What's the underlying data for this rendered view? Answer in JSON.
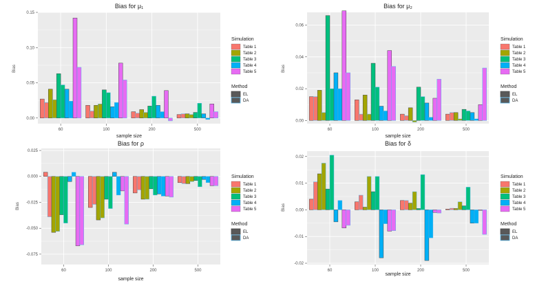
{
  "chart_data": [
    {
      "type": "bar",
      "title": "Bias for  μ₁",
      "xlabel": "sample size",
      "ylabel": "Bias",
      "categories": [
        "60",
        "100",
        "200",
        "500"
      ],
      "ylim": [
        -0.008,
        0.15
      ],
      "yticks": [
        0.0,
        0.05,
        0.1,
        0.15
      ],
      "ytick_labels": [
        "0.00",
        "0.05",
        "0.10",
        "0.15"
      ],
      "series": [
        {
          "table": "Table 1",
          "method": "EL",
          "values": [
            0.027,
            0.018,
            0.009,
            0.005
          ]
        },
        {
          "table": "Table 1",
          "method": "DA",
          "values": [
            0.022,
            0.01,
            0.007,
            0.006
          ]
        },
        {
          "table": "Table 2",
          "method": "EL",
          "values": [
            0.041,
            0.018,
            0.012,
            0.006
          ]
        },
        {
          "table": "Table 2",
          "method": "DA",
          "values": [
            0.026,
            0.02,
            0.008,
            0.005
          ]
        },
        {
          "table": "Table 3",
          "method": "EL",
          "values": [
            0.063,
            0.04,
            0.017,
            0.008
          ]
        },
        {
          "table": "Table 3",
          "method": "DA",
          "values": [
            0.047,
            0.036,
            0.031,
            0.021
          ]
        },
        {
          "table": "Table 4",
          "method": "EL",
          "values": [
            0.041,
            0.016,
            0.018,
            0.006
          ]
        },
        {
          "table": "Table 4",
          "method": "DA",
          "values": [
            0.024,
            0.022,
            0.009,
            -0.002
          ]
        },
        {
          "table": "Table 5",
          "method": "EL",
          "values": [
            0.142,
            0.078,
            0.039,
            0.02
          ]
        },
        {
          "table": "Table 5",
          "method": "DA",
          "values": [
            0.072,
            0.054,
            -0.004,
            0.009
          ]
        }
      ]
    },
    {
      "type": "bar",
      "title": "Bias for  μ₂",
      "xlabel": "sample size",
      "ylabel": "Bias",
      "categories": [
        "60",
        "100",
        "200",
        "500"
      ],
      "ylim": [
        -0.002,
        0.068
      ],
      "yticks": [
        0.0,
        0.02,
        0.04,
        0.06
      ],
      "ytick_labels": [
        "0.00",
        "0.02",
        "0.04",
        "0.06"
      ],
      "series": [
        {
          "table": "Table 1",
          "method": "EL",
          "values": [
            0.015,
            0.013,
            0.004,
            0.004
          ]
        },
        {
          "table": "Table 1",
          "method": "DA",
          "values": [
            0.015,
            0.004,
            0.003,
            0.005
          ]
        },
        {
          "table": "Table 2",
          "method": "EL",
          "values": [
            0.019,
            0.016,
            0.008,
            0.005
          ]
        },
        {
          "table": "Table 2",
          "method": "DA",
          "values": [
            0.005,
            0.004,
            -0.001,
            0.001
          ]
        },
        {
          "table": "Table 3",
          "method": "EL",
          "values": [
            0.066,
            0.036,
            0.021,
            0.007
          ]
        },
        {
          "table": "Table 3",
          "method": "DA",
          "values": [
            0.02,
            0.021,
            0.015,
            0.006
          ]
        },
        {
          "table": "Table 4",
          "method": "EL",
          "values": [
            0.03,
            0.009,
            0.011,
            0.005
          ]
        },
        {
          "table": "Table 4",
          "method": "DA",
          "values": [
            0.02,
            0.006,
            0.002,
            0.001
          ]
        },
        {
          "table": "Table 5",
          "method": "EL",
          "values": [
            0.069,
            0.044,
            0.014,
            0.01
          ]
        },
        {
          "table": "Table 5",
          "method": "DA",
          "values": [
            0.03,
            0.034,
            0.026,
            0.033
          ]
        }
      ]
    },
    {
      "type": "bar",
      "title": "Bias for  ρ",
      "xlabel": "sample size",
      "ylabel": "Bias",
      "categories": [
        "60",
        "100",
        "200",
        "500"
      ],
      "ylim": [
        -0.085,
        0.027
      ],
      "yticks": [
        -0.075,
        -0.05,
        -0.025,
        0.0,
        0.025
      ],
      "ytick_labels": [
        "-0.075",
        "-0.050",
        "-0.025",
        "0.000",
        "0.025"
      ],
      "series": [
        {
          "table": "Table 1",
          "method": "EL",
          "values": [
            0.004,
            -0.03,
            -0.016,
            -0.006
          ]
        },
        {
          "table": "Table 1",
          "method": "DA",
          "values": [
            -0.039,
            -0.027,
            -0.013,
            -0.007
          ]
        },
        {
          "table": "Table 2",
          "method": "EL",
          "values": [
            -0.054,
            -0.042,
            -0.022,
            -0.007
          ]
        },
        {
          "table": "Table 2",
          "method": "DA",
          "values": [
            -0.053,
            -0.04,
            -0.022,
            -0.005
          ]
        },
        {
          "table": "Table 3",
          "method": "EL",
          "values": [
            -0.037,
            -0.022,
            -0.012,
            -0.004
          ]
        },
        {
          "table": "Table 3",
          "method": "DA",
          "values": [
            -0.045,
            -0.031,
            -0.018,
            -0.01
          ]
        },
        {
          "table": "Table 4",
          "method": "EL",
          "values": [
            -0.005,
            0.004,
            -0.017,
            -0.003
          ]
        },
        {
          "table": "Table 4",
          "method": "DA",
          "values": [
            0.004,
            -0.018,
            -0.019,
            -0.006
          ]
        },
        {
          "table": "Table 5",
          "method": "EL",
          "values": [
            -0.067,
            -0.014,
            -0.019,
            -0.009
          ]
        },
        {
          "table": "Table 5",
          "method": "DA",
          "values": [
            -0.066,
            -0.046,
            -0.02,
            -0.009
          ]
        }
      ]
    },
    {
      "type": "bar",
      "title": "Bias for  δ",
      "xlabel": "sample size",
      "ylabel": "Bias",
      "categories": [
        "60",
        "100",
        "200",
        "500"
      ],
      "ylim": [
        -0.0205,
        0.022
      ],
      "yticks": [
        -0.02,
        -0.01,
        0.0,
        0.01,
        0.02
      ],
      "ytick_labels": [
        "-0.02",
        "-0.01",
        "0.00",
        "0.01",
        "0.02"
      ],
      "series": [
        {
          "table": "Table 1",
          "method": "EL",
          "values": [
            0.004,
            0.003,
            0.0035,
            0.0003
          ]
        },
        {
          "table": "Table 1",
          "method": "DA",
          "values": [
            0.0105,
            0.0055,
            0.0035,
            0.0006
          ]
        },
        {
          "table": "Table 2",
          "method": "EL",
          "values": [
            0.0135,
            0.001,
            0.0025,
            0.0005
          ]
        },
        {
          "table": "Table 2",
          "method": "DA",
          "values": [
            0.0175,
            0.0125,
            0.0068,
            0.003
          ]
        },
        {
          "table": "Table 3",
          "method": "EL",
          "values": [
            0.0078,
            0.0068,
            0.0005,
            0.0015
          ]
        },
        {
          "table": "Table 3",
          "method": "DA",
          "values": [
            0.0205,
            0.0125,
            0.0132,
            0.0085
          ]
        },
        {
          "table": "Table 4",
          "method": "EL",
          "values": [
            -0.0045,
            -0.018,
            -0.019,
            -0.005
          ]
        },
        {
          "table": "Table 4",
          "method": "DA",
          "values": [
            0.0035,
            -0.0052,
            -0.0105,
            -0.005
          ]
        },
        {
          "table": "Table 5",
          "method": "EL",
          "values": [
            -0.0068,
            -0.008,
            -0.001,
            -0.0002
          ]
        },
        {
          "table": "Table 5",
          "method": "DA",
          "values": [
            -0.0058,
            -0.0078,
            -0.0012,
            -0.0092
          ]
        }
      ]
    }
  ],
  "legend": {
    "simulation_title": "Simulation",
    "simulation_items": [
      "Table 1",
      "Table 2",
      "Table 3",
      "Table 4",
      "Table 5"
    ],
    "method_title": "Method",
    "method_items": [
      "EL",
      "DA"
    ]
  },
  "colors": {
    "Table 1": "#F8766D",
    "Table 2": "#A3A500",
    "Table 3": "#00BF7D",
    "Table 4": "#00B0F6",
    "Table 5": "#E76BF3",
    "EL_outline": "#4a4a4a",
    "DA_outline": "#56B4E9",
    "panel_background": "#EBEBEB",
    "grid": "#FFFFFF"
  }
}
